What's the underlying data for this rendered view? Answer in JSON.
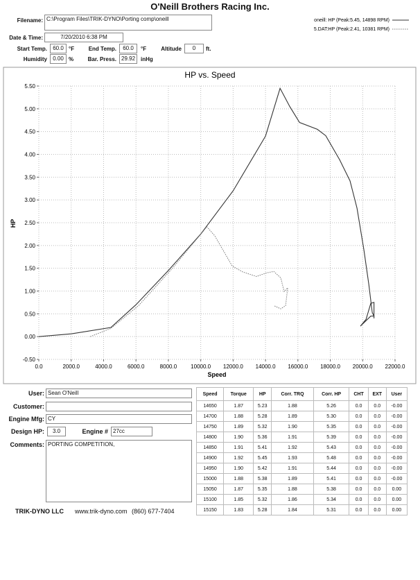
{
  "header": {
    "title": "O'Neill Brothers Racing Inc."
  },
  "fields": {
    "filename": {
      "label": "Filename:",
      "value": "C:\\Program Files\\TRIK-DYNO\\Porting comp\\oneill"
    },
    "date_time": {
      "label": "Date & Time:",
      "value": "7/20/2010 6:38 PM"
    },
    "start_temp": {
      "label": "Start Temp.",
      "value": "60.0",
      "unit": "°F"
    },
    "end_temp": {
      "label": "End Temp.",
      "value": "60.0",
      "unit": "°F"
    },
    "altitude": {
      "label": "Altitude",
      "value": "0",
      "unit": "ft."
    },
    "humidity": {
      "label": "Humidity",
      "value": "0.00",
      "unit": "%"
    },
    "bar_press": {
      "label": "Bar. Press.",
      "value": "29.92",
      "unit": "inHg"
    }
  },
  "chart_data": {
    "type": "line",
    "title": "HP vs. Speed",
    "x_label": "Speed",
    "y_label": "HP",
    "grid": true,
    "xlim": [
      0,
      22000
    ],
    "ylim": [
      -0.5,
      5.5
    ],
    "xticks": [
      {
        "value": 0,
        "label": "0.0"
      },
      {
        "value": 2000,
        "label": "2000.0"
      },
      {
        "value": 4000,
        "label": "4000.0"
      },
      {
        "value": 6000,
        "label": "6000.0"
      },
      {
        "value": 8000,
        "label": "8000.0"
      },
      {
        "value": 10000,
        "label": "10000.0"
      },
      {
        "value": 12000,
        "label": "12000.0"
      },
      {
        "value": 14000,
        "label": "14000.0"
      },
      {
        "value": 16000,
        "label": "16000.0"
      },
      {
        "value": 18000,
        "label": "18000.0"
      },
      {
        "value": 20000,
        "label": "20000.0"
      },
      {
        "value": 22000,
        "label": "22000.0"
      }
    ],
    "yticks": [
      {
        "value": -0.5,
        "label": "-0.50"
      },
      {
        "value": 0,
        "label": "0.00"
      },
      {
        "value": 0.5,
        "label": "0.50"
      },
      {
        "value": 1,
        "label": "1.00"
      },
      {
        "value": 1.5,
        "label": "1.50"
      },
      {
        "value": 2,
        "label": "2.00"
      },
      {
        "value": 2.5,
        "label": "2.50"
      },
      {
        "value": 3,
        "label": "3.00"
      },
      {
        "value": 3.5,
        "label": "3.50"
      },
      {
        "value": 4,
        "label": "4.00"
      },
      {
        "value": 4.5,
        "label": "4.50"
      },
      {
        "value": 5,
        "label": "5.00"
      },
      {
        "value": 5.5,
        "label": "5.50"
      }
    ],
    "series": [
      {
        "name": "oneill: HP (Peak:5.45, 14898 RPM)",
        "color": "#333333",
        "dash": false,
        "x": [
          0,
          2000,
          4450,
          6000,
          8000,
          10000,
          12000,
          14000,
          14898,
          15500,
          16100,
          17200,
          17720,
          18580,
          19220,
          19650,
          20080,
          20380,
          20590,
          20700,
          20500,
          19860,
          20210,
          20500,
          20700,
          20700
        ],
        "values": [
          0,
          0.06,
          0.2,
          0.7,
          1.45,
          2.25,
          3.2,
          4.4,
          5.45,
          5.05,
          4.7,
          4.55,
          4.41,
          3.88,
          3.42,
          2.82,
          1.9,
          1.14,
          0.53,
          0.45,
          0.45,
          0.23,
          0.38,
          0.73,
          0.75,
          0.4
        ]
      },
      {
        "name": "5.DAT:HP (Peak:2.41, 10381 RPM)",
        "color": "#777777",
        "dash": true,
        "x": [
          3170,
          4450,
          6160,
          8300,
          10381,
          10870,
          11940,
          12590,
          13440,
          14080,
          14510,
          14940,
          15150,
          15370,
          15240,
          14940,
          14510
        ],
        "values": [
          0,
          0.18,
          0.68,
          1.52,
          2.41,
          2.21,
          1.55,
          1.42,
          1.32,
          1.4,
          1.43,
          1.29,
          0.99,
          1.07,
          0.68,
          0.61,
          0.68
        ]
      }
    ]
  },
  "form": {
    "user": {
      "label": "User:",
      "value": "Sean O'Neill"
    },
    "customer": {
      "label": "Customer:"
    },
    "engine_mfg": {
      "label": "Engine Mfg:",
      "value": "CY"
    },
    "design_hp": {
      "label": "Design HP:",
      "value": "3.0"
    },
    "engine_no": {
      "label": "Engine #",
      "value": "27cc"
    },
    "comments": {
      "label": "Comments:",
      "value": "PORTING COMPETITION,"
    }
  },
  "table": {
    "columns": [
      "Speed",
      "Torque",
      "HP",
      "Corr. TRQ",
      "Corr. HP",
      "CHT",
      "EXT",
      "User"
    ],
    "rows": [
      [
        "14650",
        "1.87",
        "5.23",
        "1.88",
        "5.26",
        "0.0",
        "0.0",
        "-0.00"
      ],
      [
        "14700",
        "1.88",
        "5.28",
        "1.89",
        "5.30",
        "0.0",
        "0.0",
        "-0.00"
      ],
      [
        "14750",
        "1.89",
        "5.32",
        "1.90",
        "5.35",
        "0.0",
        "0.0",
        "-0.00"
      ],
      [
        "14800",
        "1.90",
        "5.36",
        "1.91",
        "5.39",
        "0.0",
        "0.0",
        "-0.00"
      ],
      [
        "14850",
        "1.91",
        "5.41",
        "1.92",
        "5.43",
        "0.0",
        "0.0",
        "-0.00"
      ],
      [
        "14900",
        "1.92",
        "5.45",
        "1.93",
        "5.48",
        "0.0",
        "0.0",
        "-0.00"
      ],
      [
        "14950",
        "1.90",
        "5.42",
        "1.91",
        "5.44",
        "0.0",
        "0.0",
        "-0.00"
      ],
      [
        "15000",
        "1.88",
        "5.38",
        "1.89",
        "5.41",
        "0.0",
        "0.0",
        "-0.00"
      ],
      [
        "15050",
        "1.87",
        "5.35",
        "1.88",
        "5.38",
        "0.0",
        "0.0",
        "0.00"
      ],
      [
        "15100",
        "1.85",
        "5.32",
        "1.86",
        "5.34",
        "0.0",
        "0.0",
        "0.00"
      ],
      [
        "15150",
        "1.83",
        "5.28",
        "1.84",
        "5.31",
        "0.0",
        "0.0",
        "0.00"
      ]
    ]
  },
  "footer": {
    "company": "TRIK-DYNO LLC",
    "website": "www.trik-dyno.com",
    "phone": "(860) 677-7404"
  }
}
